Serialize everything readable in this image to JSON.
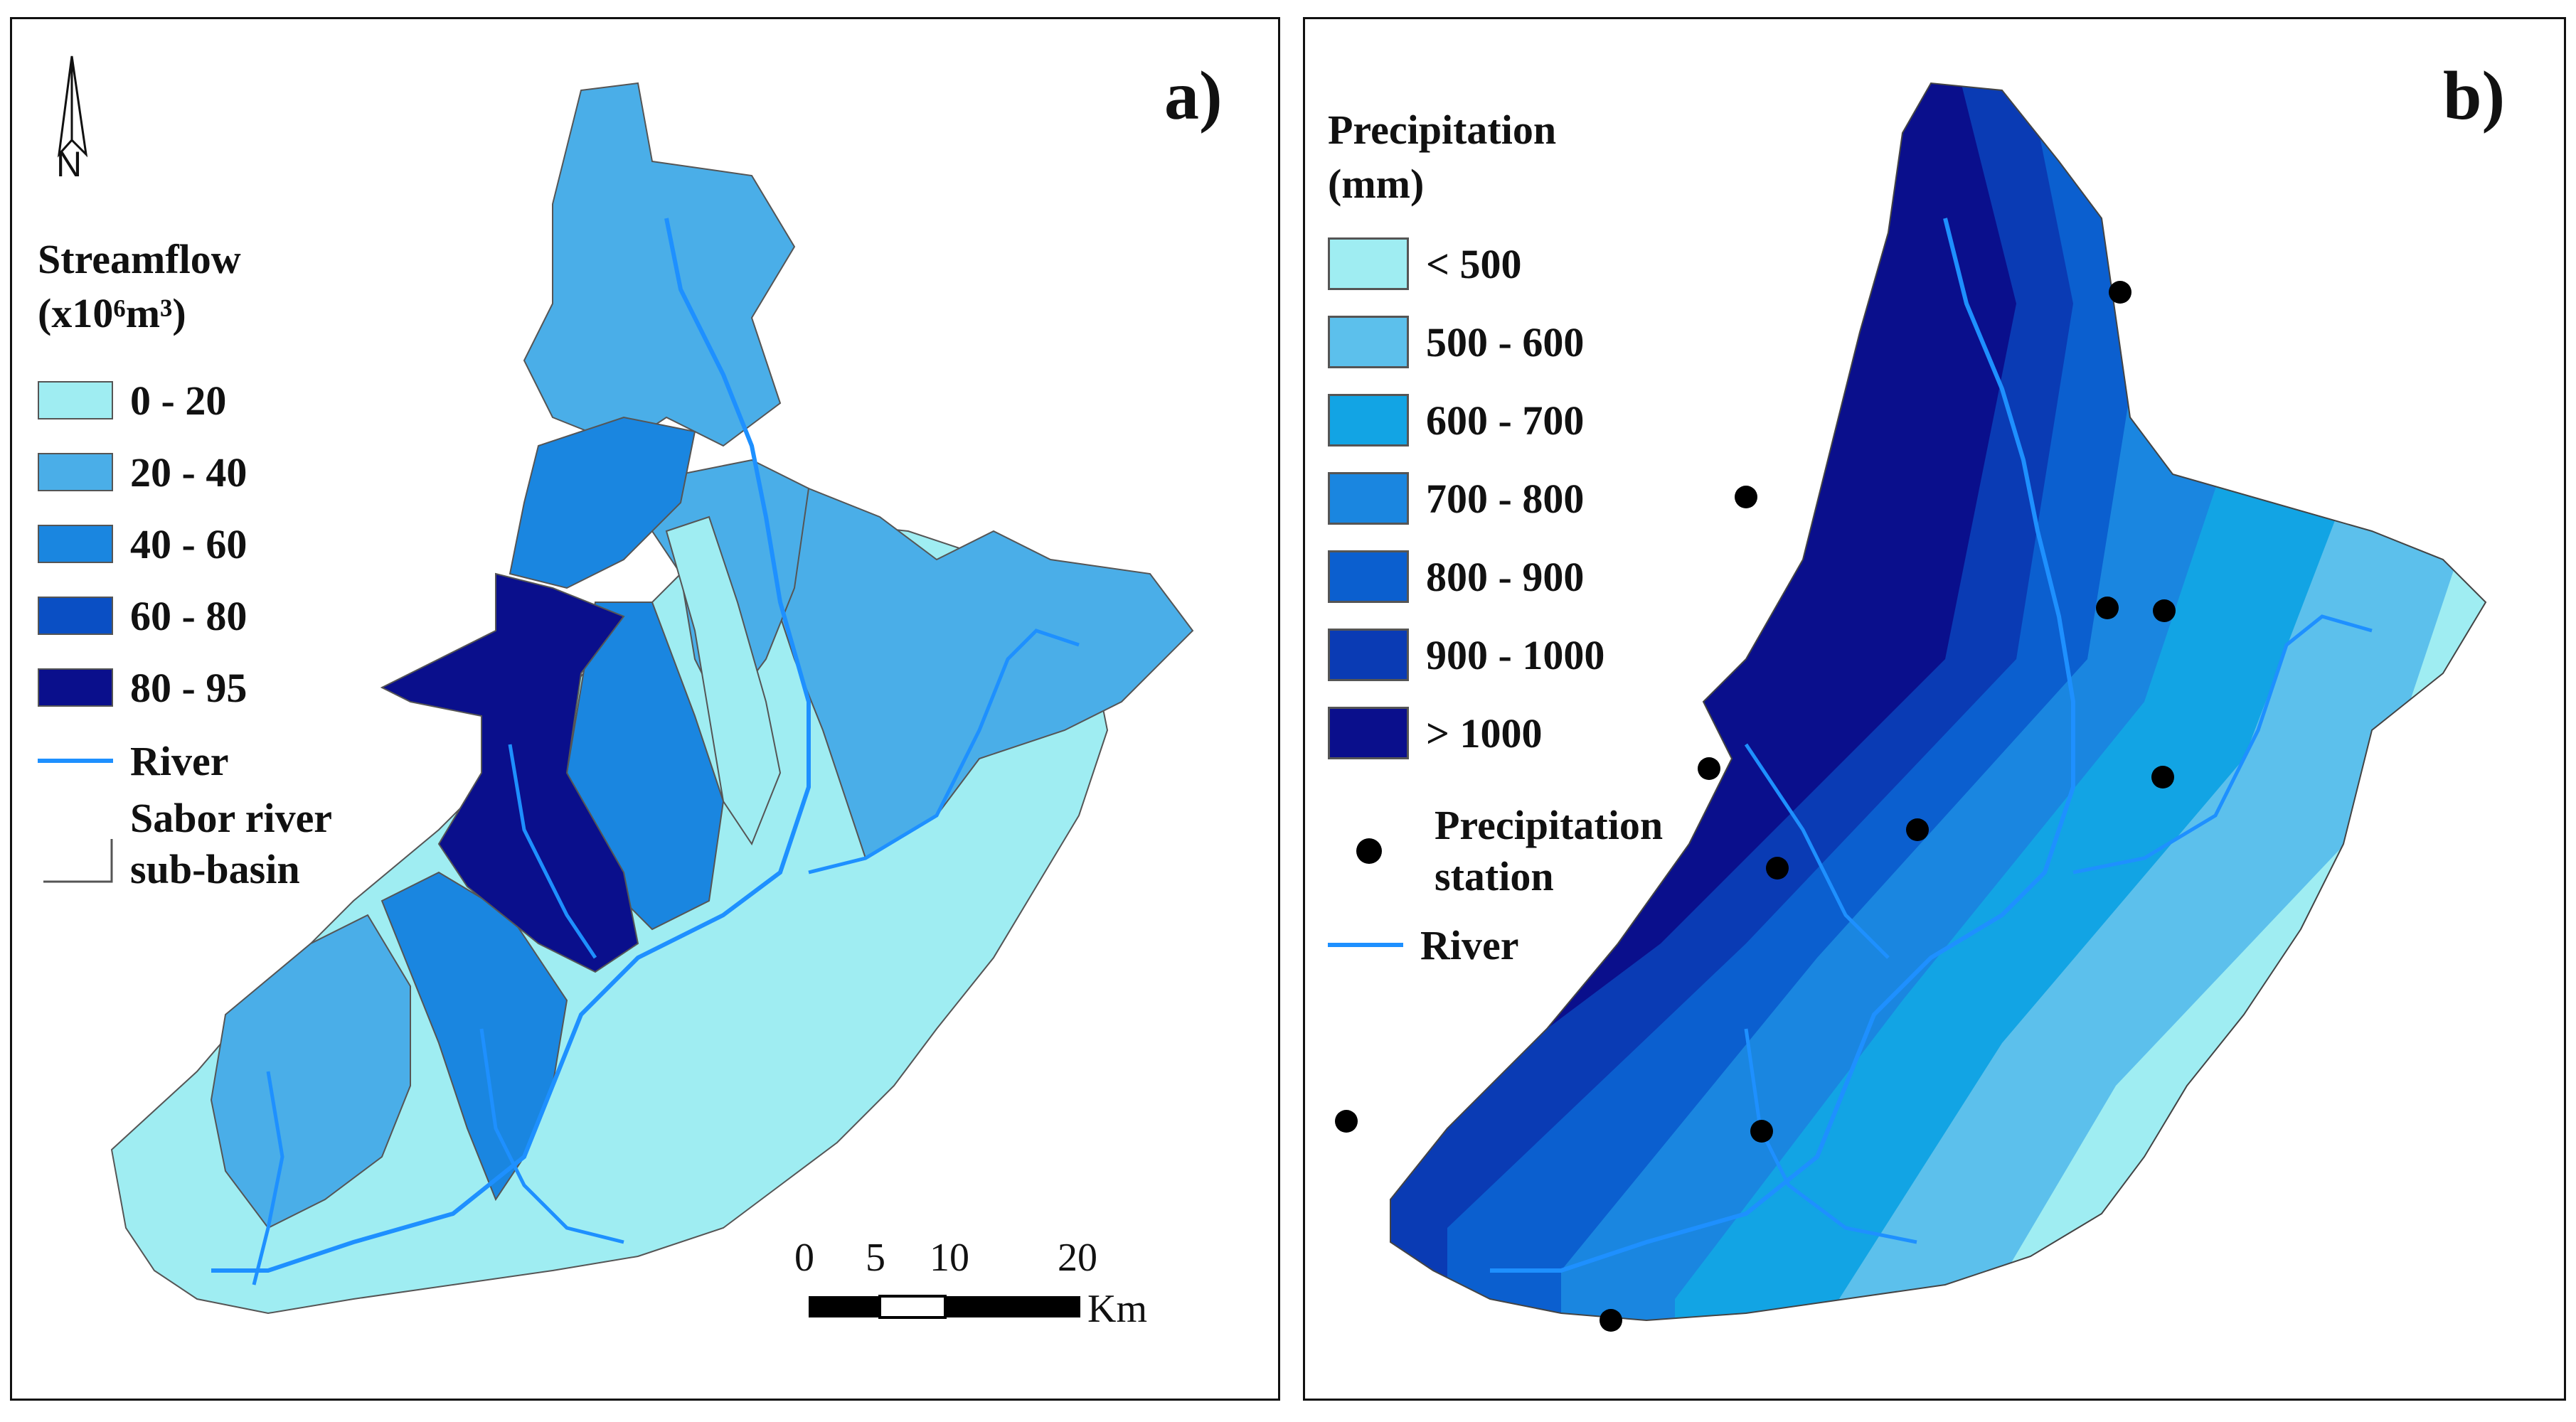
{
  "panel_a": {
    "label": "a)",
    "north": "N",
    "legend": {
      "title_line1": "Streamflow",
      "title_line2": "(x10⁶m³)",
      "classes": [
        {
          "label": "0 - 20",
          "color": "#9fedf2"
        },
        {
          "label": "20 - 40",
          "color": "#4aaee8"
        },
        {
          "label": "40 - 60",
          "color": "#1a86e0"
        },
        {
          "label": "60 - 80",
          "color": "#0a4fc4"
        },
        {
          "label": "80 - 95",
          "color": "#0a0f8c"
        }
      ],
      "river_label": "River",
      "subbasin_line1": "Sabor river",
      "subbasin_line2": "sub-basin"
    },
    "scale": {
      "ticks": [
        "0",
        "5",
        "10",
        "20"
      ],
      "unit": "Km"
    }
  },
  "panel_b": {
    "label": "b)",
    "legend": {
      "title_line1": "Precipitation",
      "title_line2": "(mm)",
      "classes": [
        {
          "label": "< 500",
          "color": "#9fedf2"
        },
        {
          "label": "500 - 600",
          "color": "#5cc0ec"
        },
        {
          "label": "600 - 700",
          "color": "#12a4e4"
        },
        {
          "label": "700 - 800",
          "color": "#1a86e0"
        },
        {
          "label": "800 - 900",
          "color": "#0b5fcf"
        },
        {
          "label": "900 - 1000",
          "color": "#0a3bb4"
        },
        {
          "label": "> 1000",
          "color": "#0a0f8c"
        }
      ],
      "station_line1": "Precipitation",
      "station_line2": "station",
      "river_label": "River"
    }
  },
  "colors": {
    "river": "#1e90ff",
    "border": "#111111"
  }
}
